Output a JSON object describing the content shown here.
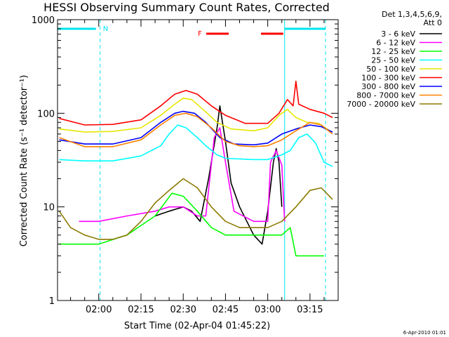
{
  "chart_data": {
    "type": "line",
    "title": "HESSI Observing Summary Count Rates, Corrected",
    "xlabel": "Start Time (02-Apr-04 01:45:22)",
    "ylabel": "Corrected Count Rate (s⁻¹ detector⁻¹)",
    "yscale": "log",
    "ylim": [
      1,
      1000
    ],
    "xlim": [
      "01:45:22",
      "03:25:00"
    ],
    "x_ticks": [
      "02:00",
      "02:15",
      "02:30",
      "02:45",
      "03:00",
      "03:15"
    ],
    "y_ticks": [
      "1",
      "10",
      "100",
      "1000"
    ],
    "legend_header": [
      "Det 1,3,4,5,6,9,",
      "Att 0"
    ],
    "footer": "6-Apr-2010 01:01",
    "annotations": [
      {
        "label": "N",
        "color": "#00e5ee",
        "x_from": "01:45:22",
        "x_to": "02:00:30"
      },
      {
        "label": "F",
        "color": "#ff0000",
        "x_from": "02:40:30",
        "x_to": "03:06:00"
      }
    ],
    "markers": {
      "solid_lines": [
        "01:45:22",
        "03:06:00"
      ],
      "dashed_lines": [
        "02:00:30",
        "03:20:30"
      ]
    },
    "series": [
      {
        "name": "3 - 6 keV",
        "color": "#000000",
        "points": [
          [
            "02:20",
            8
          ],
          [
            "02:25",
            9
          ],
          [
            "02:30",
            10
          ],
          [
            "02:33",
            9
          ],
          [
            "02:36",
            7
          ],
          [
            "02:39",
            20
          ],
          [
            "02:42",
            70
          ],
          [
            "02:43",
            120
          ],
          [
            "02:45",
            50
          ],
          [
            "02:47",
            18
          ],
          [
            "02:50",
            10
          ],
          [
            "02:55",
            5
          ],
          [
            "02:58",
            4
          ],
          [
            "03:00",
            9
          ],
          [
            "03:02",
            30
          ],
          [
            "03:03",
            42
          ],
          [
            "03:04",
            30
          ],
          [
            "03:05",
            10
          ]
        ]
      },
      {
        "name": "6 - 12 keV",
        "color": "#ff00ff",
        "points": [
          [
            "01:53",
            7
          ],
          [
            "02:00",
            7
          ],
          [
            "02:10",
            8
          ],
          [
            "02:20",
            9
          ],
          [
            "02:25",
            10
          ],
          [
            "02:30",
            10
          ],
          [
            "02:35",
            8
          ],
          [
            "02:38",
            8
          ],
          [
            "02:41",
            55
          ],
          [
            "02:43",
            70
          ],
          [
            "02:45",
            30
          ],
          [
            "02:48",
            9
          ],
          [
            "02:55",
            7
          ],
          [
            "03:00",
            7
          ],
          [
            "03:01",
            30
          ],
          [
            "03:03",
            40
          ],
          [
            "03:05",
            28
          ],
          [
            "03:06",
            7
          ]
        ]
      },
      {
        "name": "12 - 25 keV",
        "color": "#00ff00",
        "points": [
          [
            "01:46",
            4
          ],
          [
            "01:55",
            4
          ],
          [
            "02:00",
            4
          ],
          [
            "02:10",
            5
          ],
          [
            "02:20",
            8
          ],
          [
            "02:26",
            14
          ],
          [
            "02:30",
            13
          ],
          [
            "02:35",
            9
          ],
          [
            "02:40",
            6
          ],
          [
            "02:45",
            5
          ],
          [
            "02:50",
            5
          ],
          [
            "02:55",
            5
          ],
          [
            "03:00",
            5
          ],
          [
            "03:05",
            5
          ],
          [
            "03:08",
            6
          ],
          [
            "03:10",
            3
          ],
          [
            "03:15",
            3
          ],
          [
            "03:20",
            3
          ]
        ]
      },
      {
        "name": "25 - 50 keV",
        "color": "#00ffff",
        "points": [
          [
            "01:46",
            32
          ],
          [
            "01:55",
            31
          ],
          [
            "02:05",
            31
          ],
          [
            "02:15",
            35
          ],
          [
            "02:22",
            45
          ],
          [
            "02:25",
            60
          ],
          [
            "02:28",
            75
          ],
          [
            "02:31",
            70
          ],
          [
            "02:35",
            55
          ],
          [
            "02:38",
            45
          ],
          [
            "02:42",
            36
          ],
          [
            "02:45",
            33
          ],
          [
            "02:55",
            32
          ],
          [
            "03:00",
            32
          ],
          [
            "03:05",
            36
          ],
          [
            "03:08",
            40
          ],
          [
            "03:11",
            55
          ],
          [
            "03:14",
            60
          ],
          [
            "03:17",
            48
          ],
          [
            "03:20",
            30
          ],
          [
            "03:23",
            27
          ]
        ]
      },
      {
        "name": "50 - 100 keV",
        "color": "#e6e600",
        "points": [
          [
            "01:46",
            68
          ],
          [
            "01:55",
            63
          ],
          [
            "02:05",
            64
          ],
          [
            "02:15",
            70
          ],
          [
            "02:22",
            95
          ],
          [
            "02:27",
            125
          ],
          [
            "02:30",
            145
          ],
          [
            "02:33",
            140
          ],
          [
            "02:37",
            110
          ],
          [
            "02:42",
            80
          ],
          [
            "02:47",
            68
          ],
          [
            "02:55",
            65
          ],
          [
            "03:00",
            70
          ],
          [
            "03:04",
            95
          ],
          [
            "03:07",
            110
          ],
          [
            "03:10",
            90
          ],
          [
            "03:14",
            80
          ],
          [
            "03:18",
            78
          ],
          [
            "03:22",
            65
          ]
        ]
      },
      {
        "name": "100 - 300 keV",
        "color": "#ff0000",
        "points": [
          [
            "01:46",
            88
          ],
          [
            "01:55",
            75
          ],
          [
            "02:05",
            76
          ],
          [
            "02:15",
            85
          ],
          [
            "02:22",
            120
          ],
          [
            "02:27",
            160
          ],
          [
            "02:31",
            175
          ],
          [
            "02:35",
            160
          ],
          [
            "02:40",
            120
          ],
          [
            "02:45",
            95
          ],
          [
            "02:52",
            78
          ],
          [
            "03:00",
            78
          ],
          [
            "03:04",
            100
          ],
          [
            "03:07",
            140
          ],
          [
            "03:09",
            120
          ],
          [
            "03:10",
            220
          ],
          [
            "03:11",
            125
          ],
          [
            "03:15",
            110
          ],
          [
            "03:20",
            100
          ],
          [
            "03:23",
            90
          ]
        ]
      },
      {
        "name": "300 - 800 keV",
        "color": "#0000ff",
        "points": [
          [
            "01:46",
            52
          ],
          [
            "01:55",
            47
          ],
          [
            "02:05",
            47
          ],
          [
            "02:15",
            55
          ],
          [
            "02:22",
            80
          ],
          [
            "02:27",
            100
          ],
          [
            "02:30",
            105
          ],
          [
            "02:34",
            100
          ],
          [
            "02:38",
            80
          ],
          [
            "02:43",
            55
          ],
          [
            "02:48",
            47
          ],
          [
            "02:55",
            46
          ],
          [
            "03:00",
            48
          ],
          [
            "03:05",
            60
          ],
          [
            "03:10",
            68
          ],
          [
            "03:15",
            75
          ],
          [
            "03:19",
            72
          ],
          [
            "03:23",
            63
          ]
        ]
      },
      {
        "name": "800 - 7000 keV",
        "color": "#ff8000",
        "points": [
          [
            "01:46",
            55
          ],
          [
            "01:55",
            44
          ],
          [
            "02:05",
            44
          ],
          [
            "02:15",
            52
          ],
          [
            "02:22",
            75
          ],
          [
            "02:27",
            95
          ],
          [
            "02:31",
            100
          ],
          [
            "02:35",
            92
          ],
          [
            "02:40",
            70
          ],
          [
            "02:45",
            50
          ],
          [
            "02:50",
            45
          ],
          [
            "02:55",
            44
          ],
          [
            "03:00",
            45
          ],
          [
            "03:05",
            52
          ],
          [
            "03:10",
            65
          ],
          [
            "03:15",
            80
          ],
          [
            "03:19",
            75
          ],
          [
            "03:23",
            60
          ]
        ]
      },
      {
        "name": "7000 - 20000 keV",
        "color": "#8b7a00",
        "points": [
          [
            "01:46",
            9
          ],
          [
            "01:50",
            6
          ],
          [
            "01:55",
            5
          ],
          [
            "02:00",
            4.5
          ],
          [
            "02:05",
            4.5
          ],
          [
            "02:10",
            5
          ],
          [
            "02:15",
            7
          ],
          [
            "02:20",
            11
          ],
          [
            "02:25",
            15
          ],
          [
            "02:30",
            20
          ],
          [
            "02:35",
            16
          ],
          [
            "02:40",
            10
          ],
          [
            "02:45",
            7
          ],
          [
            "02:50",
            6
          ],
          [
            "02:55",
            6
          ],
          [
            "03:00",
            6
          ],
          [
            "03:05",
            7
          ],
          [
            "03:10",
            10
          ],
          [
            "03:15",
            15
          ],
          [
            "03:19",
            16
          ],
          [
            "03:23",
            12
          ]
        ]
      }
    ]
  }
}
